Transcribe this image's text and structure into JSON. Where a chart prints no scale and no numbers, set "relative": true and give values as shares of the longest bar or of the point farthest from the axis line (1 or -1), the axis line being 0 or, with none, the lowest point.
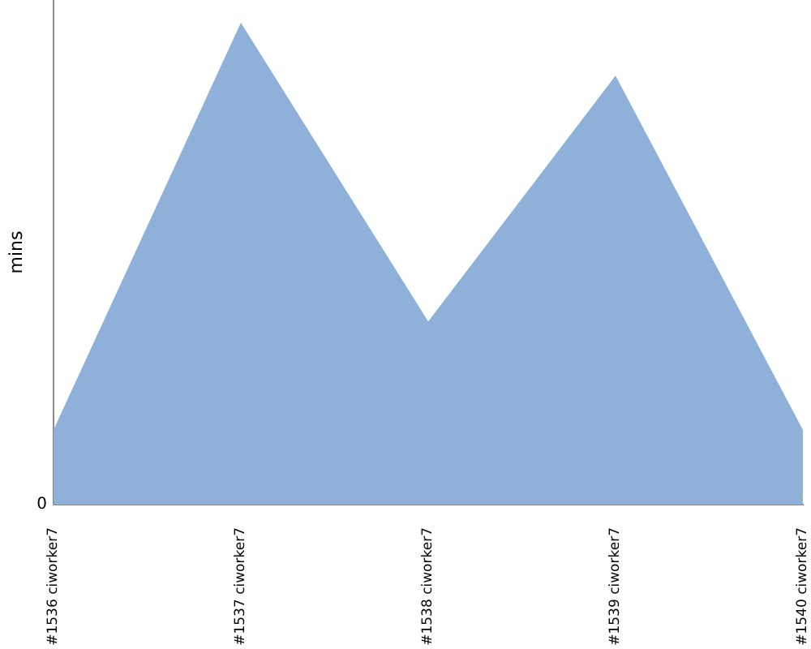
{
  "chart_data": {
    "type": "area",
    "ylabel": "mins",
    "relative": true,
    "categories": [
      "#1536 ciworker7",
      "#1537 ciworker7",
      "#1538 ciworker7",
      "#1539 ciworker7",
      "#1540 ciworker7"
    ],
    "values": [
      0.155,
      1,
      0.38,
      0.89,
      0.155
    ],
    "color": "#8fb1d9",
    "annotations": [
      "0"
    ],
    "grid": false,
    "legend": false
  }
}
